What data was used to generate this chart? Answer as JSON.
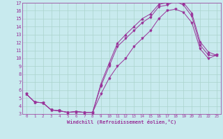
{
  "xlabel": "Windchill (Refroidissement éolien,°C)",
  "bg_color": "#c8eaee",
  "grid_color": "#aad4cc",
  "line_color": "#993399",
  "xlim": [
    -0.5,
    23.5
  ],
  "ylim": [
    3,
    17
  ],
  "xticks": [
    0,
    1,
    2,
    3,
    4,
    5,
    6,
    7,
    8,
    9,
    10,
    11,
    12,
    13,
    14,
    15,
    16,
    17,
    18,
    19,
    20,
    21,
    22,
    23
  ],
  "yticks": [
    3,
    4,
    5,
    6,
    7,
    8,
    9,
    10,
    11,
    12,
    13,
    14,
    15,
    16,
    17
  ],
  "series1_x": [
    0,
    1,
    2,
    3,
    4,
    5,
    6,
    7,
    8,
    9,
    10,
    11,
    12,
    13,
    14,
    15,
    16,
    17,
    18,
    19,
    20,
    21,
    22,
    23
  ],
  "series1_y": [
    5.5,
    4.5,
    4.4,
    3.5,
    3.4,
    3.2,
    3.3,
    3.2,
    3.2,
    6.5,
    9.0,
    11.5,
    12.5,
    13.5,
    14.5,
    15.2,
    16.5,
    16.7,
    17.2,
    16.7,
    15.3,
    11.7,
    10.4,
    10.4
  ],
  "series2_x": [
    0,
    1,
    2,
    3,
    4,
    5,
    6,
    7,
    8,
    9,
    10,
    11,
    12,
    13,
    14,
    15,
    16,
    17,
    18,
    19,
    20,
    21,
    22,
    23
  ],
  "series2_y": [
    5.5,
    4.5,
    4.4,
    3.5,
    3.4,
    3.2,
    3.3,
    3.2,
    3.2,
    6.8,
    9.4,
    11.9,
    13.0,
    14.0,
    15.0,
    15.6,
    16.8,
    17.0,
    17.5,
    17.0,
    15.7,
    12.1,
    10.8,
    10.4
  ],
  "series3_x": [
    0,
    1,
    2,
    3,
    4,
    5,
    6,
    7,
    8,
    9,
    10,
    11,
    12,
    13,
    14,
    15,
    16,
    17,
    18,
    19,
    20,
    21,
    22,
    23
  ],
  "series3_y": [
    5.5,
    4.5,
    4.4,
    3.5,
    3.4,
    3.2,
    3.3,
    3.2,
    3.2,
    5.5,
    7.5,
    9.0,
    10.0,
    11.5,
    12.5,
    13.5,
    15.0,
    16.0,
    16.2,
    15.8,
    14.5,
    11.2,
    10.0,
    10.4
  ],
  "xlabel_fontsize": 5.0,
  "ytick_fontsize": 5.0,
  "xtick_fontsize": 4.2,
  "marker_size": 2.0,
  "line_width": 0.7
}
